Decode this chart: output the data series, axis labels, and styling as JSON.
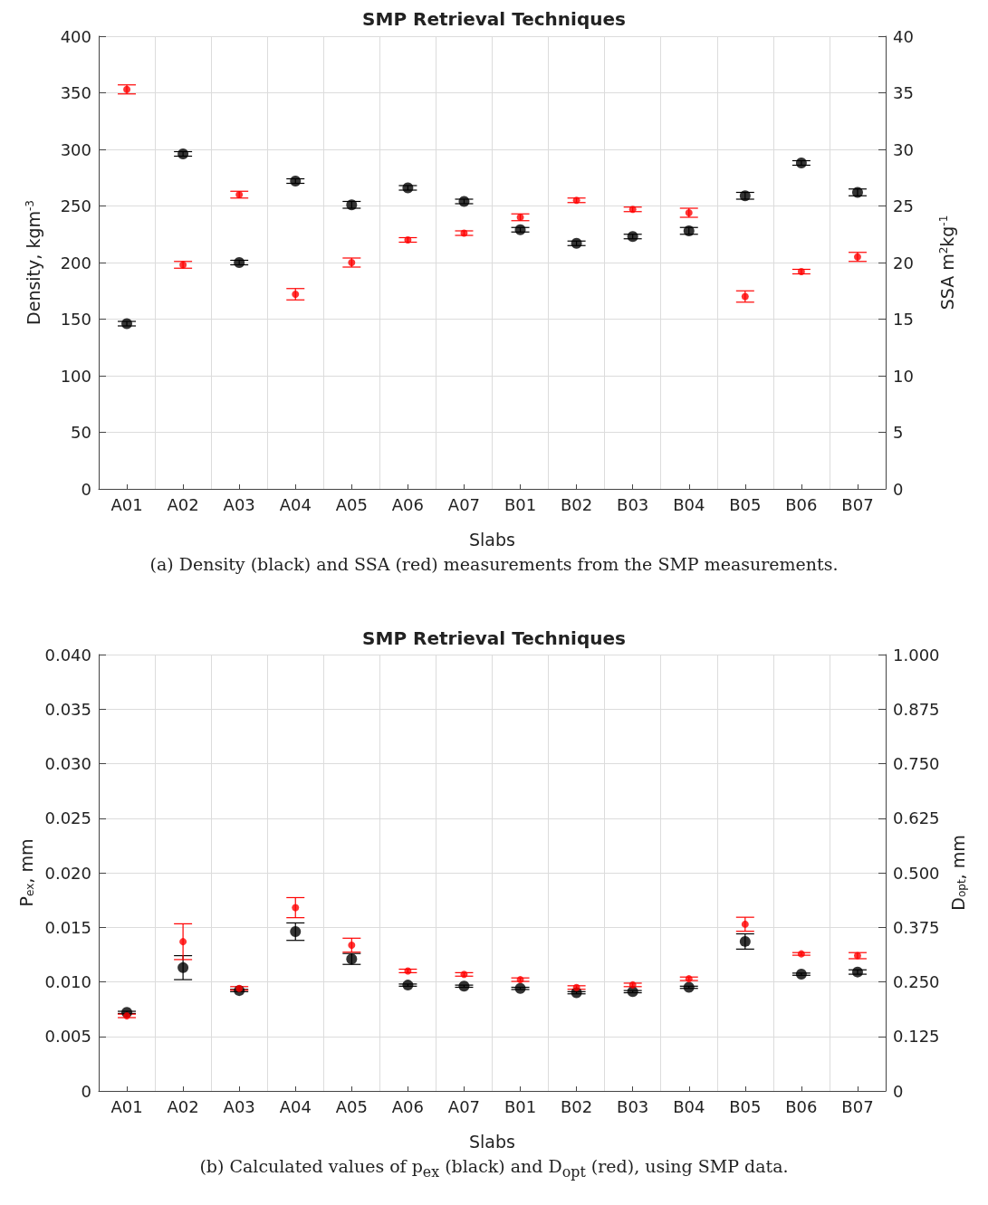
{
  "chart_data": [
    {
      "type": "scatter",
      "title": "SMP Retrieval Techniques",
      "xlabel": "Slabs",
      "ylabel": "Density, kgm$^{-3}$",
      "y2label": "SSA m$^{2}$kg$^{-1}$",
      "categories": [
        "A01",
        "A02",
        "A03",
        "A04",
        "A05",
        "A06",
        "A07",
        "B01",
        "B02",
        "B03",
        "B04",
        "B05",
        "B06",
        "B07"
      ],
      "series": [
        {
          "color": "#000000",
          "values": [
            146,
            296,
            200,
            272,
            251,
            266,
            254,
            229,
            217,
            223,
            228,
            259,
            288,
            262
          ],
          "errors": [
            2,
            2,
            2,
            2,
            3,
            2,
            2,
            2,
            2,
            2,
            3,
            3,
            2,
            3
          ]
        },
        {
          "color": "#ff0000",
          "axis": "y2",
          "values": [
            35.3,
            19.8,
            26.0,
            17.2,
            20.0,
            22.0,
            22.6,
            24.0,
            25.5,
            24.7,
            24.4,
            17.0,
            19.2,
            20.5
          ],
          "errors": [
            0.4,
            0.3,
            0.3,
            0.5,
            0.4,
            0.2,
            0.2,
            0.3,
            0.2,
            0.2,
            0.4,
            0.5,
            0.2,
            0.4
          ]
        }
      ],
      "ylim": [
        0,
        400
      ],
      "yticks": [
        0,
        50,
        100,
        150,
        200,
        250,
        300,
        350,
        400
      ],
      "y2lim": [
        0,
        40
      ],
      "y2ticks": [
        0,
        5,
        10,
        15,
        20,
        25,
        30,
        35,
        40
      ],
      "grid": true,
      "marker": "circle",
      "annotations": [
        "(a) Density (black) and SSA (red) measurements from the SMP measurements."
      ]
    },
    {
      "type": "scatter",
      "title": "SMP Retrieval Techniques",
      "xlabel": "Slabs",
      "ylabel": "P$_{ex}$, mm",
      "y2label": "D$_{opt}$, mm",
      "categories": [
        "A01",
        "A02",
        "A03",
        "A04",
        "A05",
        "A06",
        "A07",
        "B01",
        "B02",
        "B03",
        "B04",
        "B05",
        "B06",
        "B07"
      ],
      "series": [
        {
          "color": "#000000",
          "values": [
            0.0072,
            0.0113,
            0.0092,
            0.0146,
            0.0121,
            0.0097,
            0.0096,
            0.0094,
            0.009,
            0.0091,
            0.0095,
            0.0137,
            0.0107,
            0.0109
          ],
          "errors": [
            0.0001,
            0.0011,
            0.0001,
            0.0008,
            0.0005,
            0.0001,
            0.0001,
            0.0001,
            0.0001,
            0.0001,
            0.0001,
            0.0007,
            0.0001,
            0.0002
          ]
        },
        {
          "color": "#ff0000",
          "axis": "y2",
          "values": [
            0.172,
            0.342,
            0.235,
            0.42,
            0.334,
            0.275,
            0.267,
            0.255,
            0.237,
            0.243,
            0.257,
            0.382,
            0.314,
            0.31
          ],
          "errors": [
            0.004,
            0.041,
            0.004,
            0.023,
            0.016,
            0.004,
            0.004,
            0.004,
            0.004,
            0.004,
            0.004,
            0.016,
            0.003,
            0.007
          ]
        }
      ],
      "ylim": [
        0,
        0.04
      ],
      "yticks": [
        0,
        {
          "value": 0.005,
          "label": "0.005"
        },
        {
          "value": 0.01,
          "label": "0.010"
        },
        {
          "value": 0.015,
          "label": "0.015"
        },
        {
          "value": 0.02,
          "label": "0.020"
        },
        {
          "value": 0.025,
          "label": "0.025"
        },
        {
          "value": 0.03,
          "label": "0.030"
        },
        {
          "value": 0.035,
          "label": "0.035"
        },
        {
          "value": 0.04,
          "label": "0.040"
        }
      ],
      "y2lim": [
        0,
        1
      ],
      "y2ticks": [
        0,
        0.125,
        {
          "value": 0.25,
          "label": "0.250"
        },
        0.375,
        {
          "value": 0.5,
          "label": "0.500"
        },
        0.625,
        {
          "value": 0.75,
          "label": "0.750"
        },
        0.875,
        {
          "value": 1,
          "label": "1.000"
        }
      ],
      "grid": true,
      "marker": "circle",
      "annotations": [
        "(b) Calculated values of p$_{ex}$ (black) and D$_{opt}$ (red), using SMP data."
      ]
    }
  ]
}
